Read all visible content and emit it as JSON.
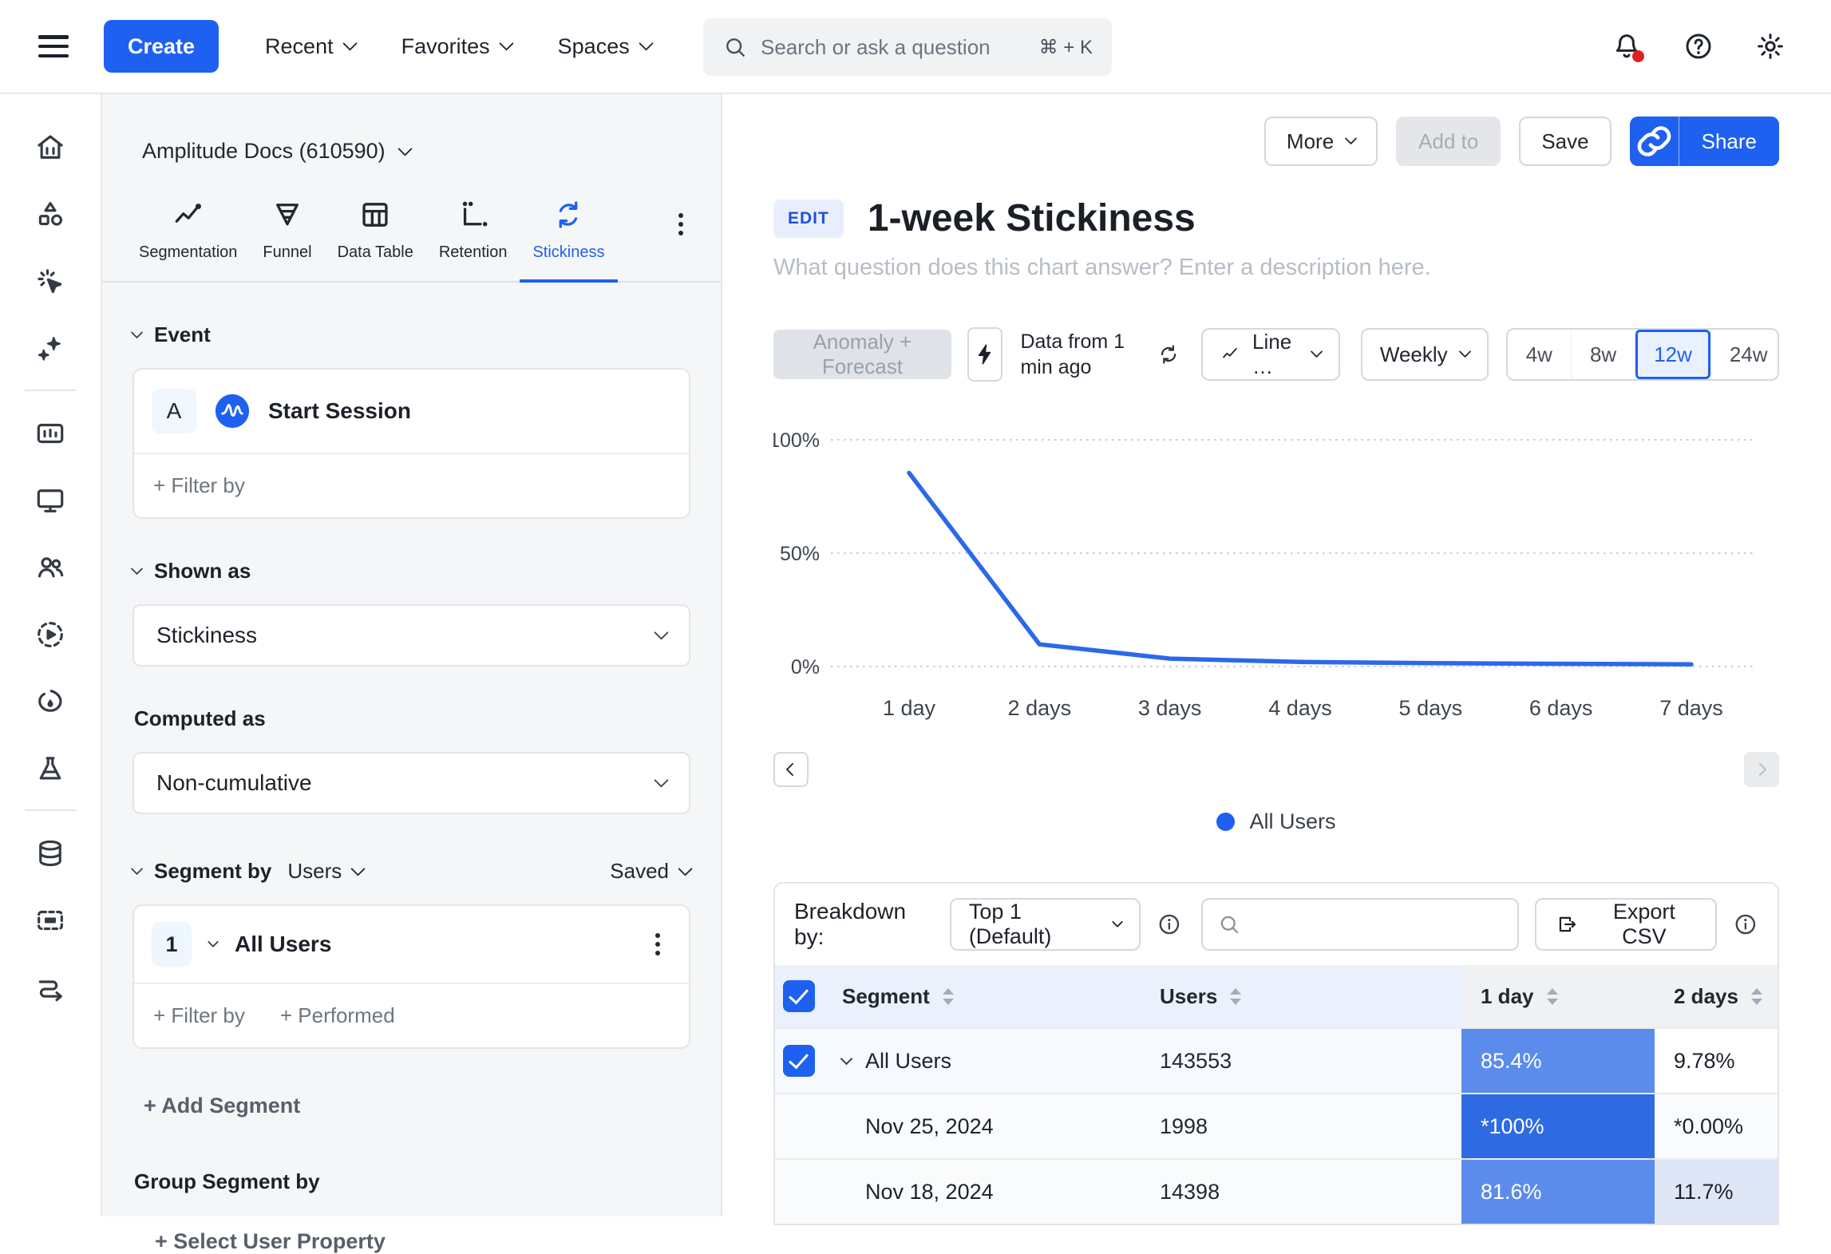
{
  "colors": {
    "accent_blue": "#1e61f0",
    "line_blue": "#2c68e8",
    "cell_blue_mid": "#5b8ceb",
    "cell_blue_strong": "#2e6be2",
    "cell_blue_light": "#dfe7f7",
    "header_blue_bg": "#eaf1fc",
    "header_gray_bg": "#f0f1f3",
    "notification_red": "#e02020"
  },
  "topnav": {
    "create_label": "Create",
    "menus": [
      "Recent",
      "Favorites",
      "Spaces"
    ],
    "search_placeholder": "Search or ask a question",
    "search_shortcut": "⌘ + K"
  },
  "icon_rail": {
    "items": [
      "home",
      "objects",
      "click-magic",
      "ai-sparkles",
      "divider",
      "dashboards",
      "displays",
      "users",
      "session-replay",
      "heatmap",
      "experiments",
      "divider",
      "data",
      "frame",
      "journeys"
    ]
  },
  "sidebar": {
    "project_label": "Amplitude Docs (610590)",
    "tabs": [
      {
        "label": "Segmentation",
        "icon": "segmentation"
      },
      {
        "label": "Funnel",
        "icon": "funnel"
      },
      {
        "label": "Data Table",
        "icon": "data-table"
      },
      {
        "label": "Retention",
        "icon": "retention"
      },
      {
        "label": "Stickiness",
        "icon": "stickiness"
      }
    ],
    "active_tab": "Stickiness",
    "event_section": {
      "header": "Event",
      "event_letter": "A",
      "event_name": "Start Session",
      "filter_by_label": "+ Filter by"
    },
    "shown_as": {
      "header": "Shown as",
      "value": "Stickiness"
    },
    "computed_as": {
      "header": "Computed as",
      "value": "Non-cumulative"
    },
    "segment_section": {
      "header": "Segment by",
      "type_value": "Users",
      "saved_label": "Saved",
      "segment_number": "1",
      "segment_name": "All Users",
      "filter_by_label": "+ Filter by",
      "performed_label": "+ Performed",
      "add_segment_label": "+ Add Segment",
      "group_header": "Group Segment by",
      "select_property_label": "+ Select User Property"
    }
  },
  "main": {
    "actions": {
      "more": "More",
      "add_to": "Add to",
      "save": "Save",
      "share": "Share"
    },
    "edit_badge": "EDIT",
    "title": "1-week Stickiness",
    "description_placeholder": "What question does this chart answer? Enter a description here.",
    "controls": {
      "anomaly_forecast": "Anomaly + Forecast",
      "data_freshness": "Data from 1 min ago",
      "chart_type": "Line …",
      "interval": "Weekly",
      "ranges": [
        "4w",
        "8w",
        "12w",
        "24w"
      ],
      "selected_range": "12w"
    },
    "legend": {
      "label": "All Users",
      "color": "#1e61f0"
    }
  },
  "chart_data": {
    "type": "line",
    "title": "1-week Stickiness",
    "categories": [
      "1 day",
      "2 days",
      "3 days",
      "4 days",
      "5 days",
      "6 days",
      "7 days"
    ],
    "series": [
      {
        "name": "All Users",
        "color": "#2c68e8",
        "values": [
          85.4,
          9.78,
          3.5,
          2.0,
          1.5,
          1.2,
          1.0
        ]
      }
    ],
    "unit": "%",
    "ylim": [
      0,
      100
    ],
    "y_ticks": [
      {
        "label": "100%",
        "value": 100
      },
      {
        "label": "50%",
        "value": 50
      },
      {
        "label": "0%",
        "value": 0
      }
    ],
    "grid": "horizontal-dotted",
    "legend_position": "bottom-center"
  },
  "table": {
    "breakdown_label": "Breakdown by:",
    "breakdown_value": "Top 1 (Default)",
    "export_label": "Export CSV",
    "columns": [
      "Segment",
      "Users",
      "1 day",
      "2 days"
    ],
    "rows": [
      {
        "kind": "parent",
        "checked": true,
        "expandable": true,
        "segment": "All Users",
        "users": "143553",
        "left_bg": "#f6f9fe",
        "cells": [
          {
            "text": "85.4%",
            "bg": "#5b8ceb",
            "fg": "#ffffff"
          },
          {
            "text": "9.78%",
            "bg": "#ffffff",
            "fg": "#1d2129"
          }
        ]
      },
      {
        "kind": "child",
        "checked": false,
        "expandable": false,
        "segment": "Nov 25, 2024",
        "users": "1998",
        "left_bg": "#fafbfc",
        "cells": [
          {
            "text": "*100%",
            "bg": "#2e6be2",
            "fg": "#ffffff"
          },
          {
            "text": "*0.00%",
            "bg": "#fafbfc",
            "fg": "#1d2129"
          }
        ]
      },
      {
        "kind": "child",
        "checked": false,
        "expandable": false,
        "segment": "Nov 18, 2024",
        "users": "14398",
        "left_bg": "#fafbfc",
        "cells": [
          {
            "text": "81.6%",
            "bg": "#5b8ceb",
            "fg": "#ffffff"
          },
          {
            "text": "11.7%",
            "bg": "#dfe7f7",
            "fg": "#1d2129"
          }
        ]
      }
    ]
  }
}
